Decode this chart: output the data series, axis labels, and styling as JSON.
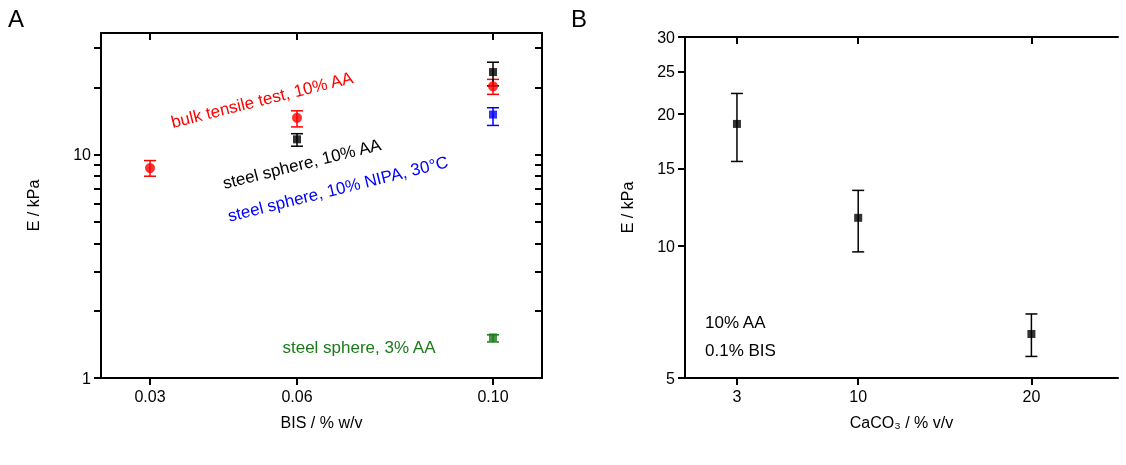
{
  "chart_data": [
    {
      "type": "scatter",
      "title": "A",
      "xlabel": "BIS / % w/v",
      "ylabel": "E / kPa",
      "log": "y",
      "legend": false,
      "grid": false,
      "xlim": [
        0.02,
        0.11
      ],
      "xticks": [
        0.03,
        0.06,
        {
          "value": 0.1,
          "label": "0.10"
        }
      ],
      "ylim": [
        1,
        35
      ],
      "yticks": [
        1,
        {
          "value": 2,
          "label": null
        },
        {
          "value": 3,
          "label": null
        },
        {
          "value": 4,
          "label": null
        },
        {
          "value": 5,
          "label": null
        },
        {
          "value": 6,
          "label": null
        },
        {
          "value": 7,
          "label": null
        },
        {
          "value": 8,
          "label": null
        },
        {
          "value": 9,
          "label": null
        },
        10,
        {
          "value": 20,
          "label": null
        },
        {
          "value": 30,
          "label": null
        }
      ],
      "series": [
        {
          "name": "bulk tensile test, 10% AA",
          "color": "#ff0000",
          "marker": "circle",
          "x": [
            0.03,
            0.06,
            0.1
          ],
          "values": [
            8.7,
            14.6,
            20.2
          ],
          "errors": [
            [
              8.0,
              9.4
            ],
            [
              13.3,
              15.7
            ],
            [
              18.6,
              21.7
            ]
          ]
        },
        {
          "name": "steel sphere, 10% AA",
          "color": "#000000",
          "marker": "square",
          "x": [
            0.06,
            0.1
          ],
          "values": [
            11.7,
            23.4
          ],
          "errors": [
            [
              10.9,
              12.4
            ],
            [
              20.3,
              25.9
            ]
          ]
        },
        {
          "name": "steel sphere, 10% NIPA, 30°C",
          "color": "#0000ff",
          "marker": "square",
          "x": [
            0.1
          ],
          "values": [
            15.1
          ],
          "errors": [
            [
              13.5,
              16.2
            ]
          ]
        },
        {
          "name": "steel sphere, 3% AA",
          "color": "#1a7a1a",
          "marker": "square",
          "x": [
            0.1
          ],
          "values": [
            1.52
          ],
          "errors": [
            [
              1.45,
              1.56
            ]
          ]
        }
      ]
    },
    {
      "type": "scatter",
      "title": "B",
      "xlabel": "CaCO₃ / % v/v",
      "ylabel": "E / kPa",
      "log": "y",
      "legend": false,
      "grid": false,
      "xlim": [
        0,
        25
      ],
      "xticks": [
        3,
        10,
        20
      ],
      "ylim": [
        5,
        30
      ],
      "yticks": [
        5,
        10,
        15,
        20,
        25,
        30
      ],
      "annotations": [
        "10% AA",
        "0.1% BIS"
      ],
      "series": [
        {
          "color": "#000000",
          "marker": "square",
          "x": [
            3,
            10,
            20
          ],
          "values": [
            19.0,
            11.6,
            6.3
          ],
          "errors": [
            [
              15.6,
              22.3
            ],
            [
              9.7,
              13.4
            ],
            [
              5.6,
              7.0
            ]
          ]
        }
      ]
    }
  ]
}
